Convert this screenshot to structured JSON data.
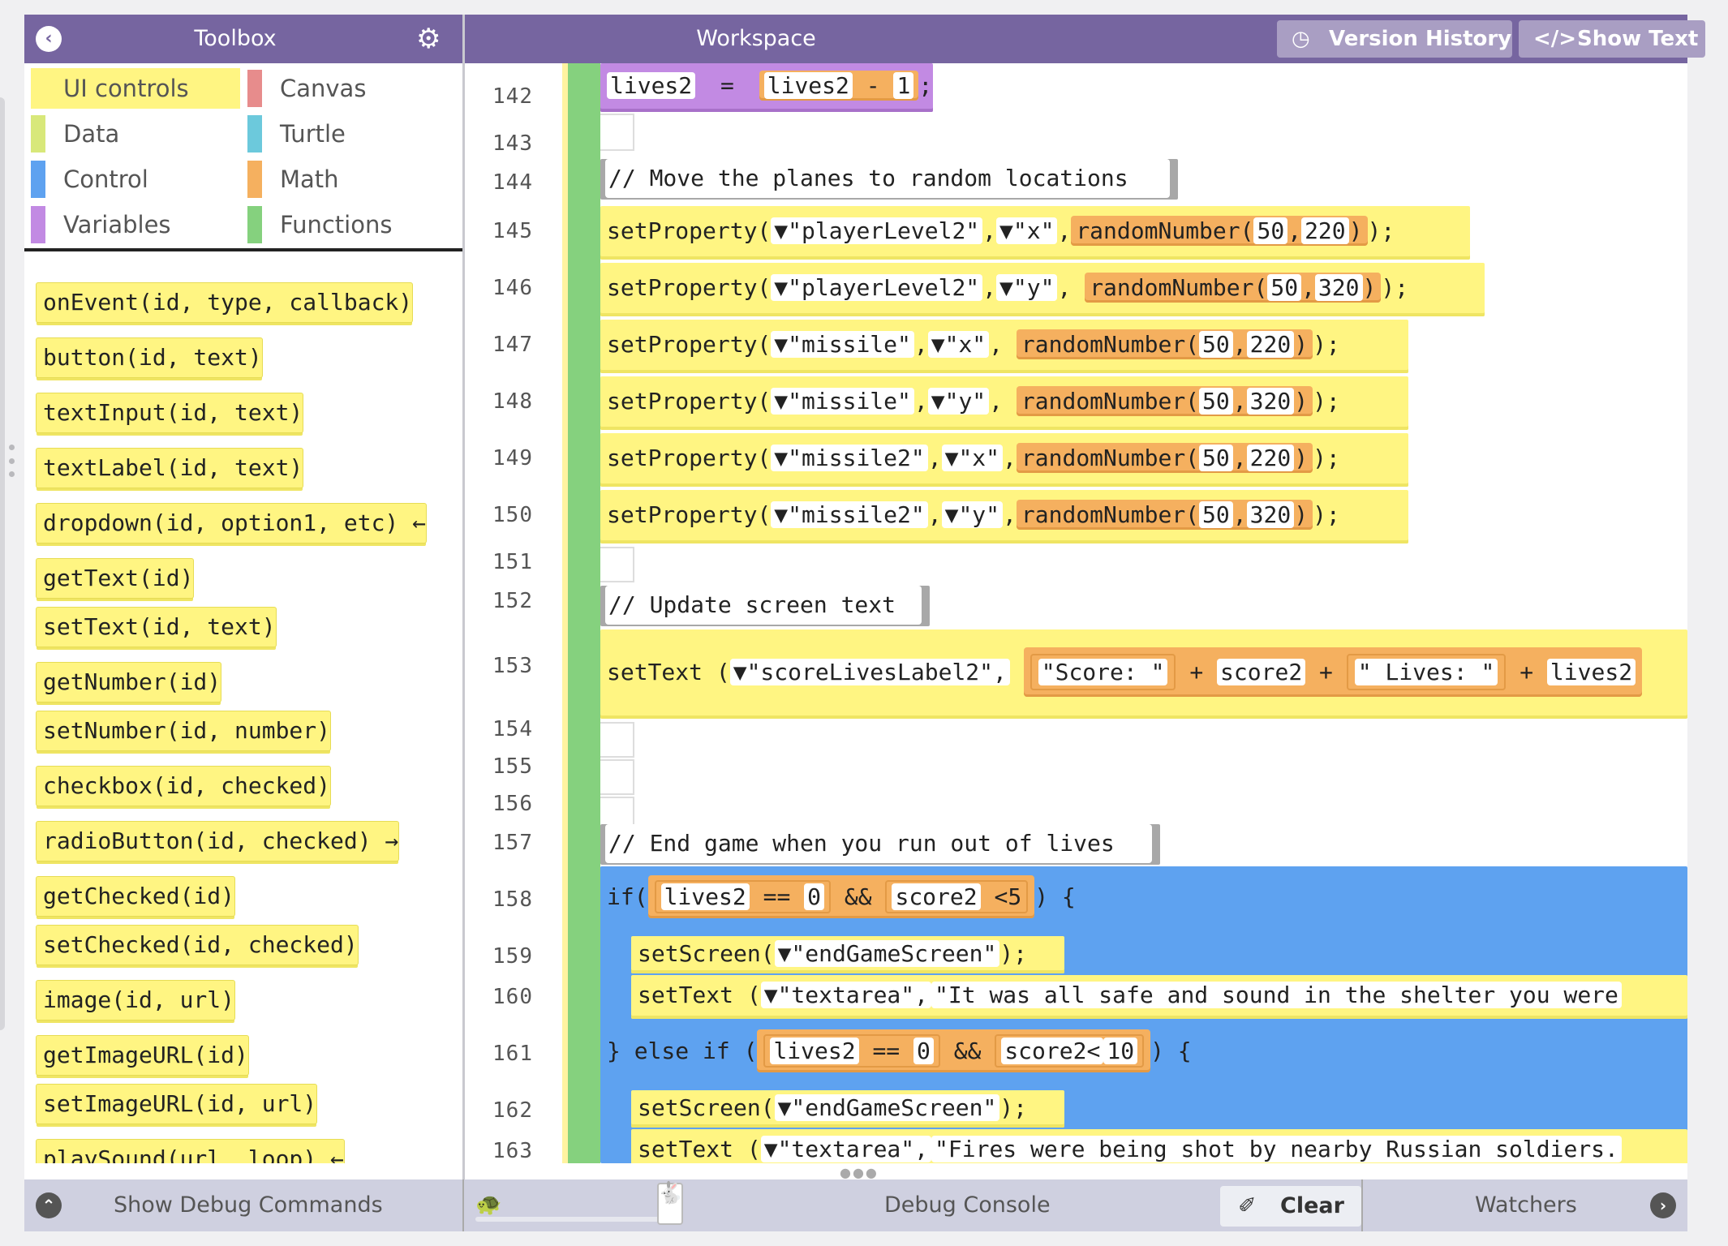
{
  "toolbox": {
    "title": "Toolbox"
  },
  "workspace": {
    "title": "Workspace",
    "version_history": "Version History",
    "show_text": "Show Text"
  },
  "categories": [
    {
      "label": "UI controls",
      "color": "#fff582"
    },
    {
      "label": "Canvas",
      "color": "#e78c8c"
    },
    {
      "label": "Data",
      "color": "#d8e87a"
    },
    {
      "label": "Turtle",
      "color": "#6cc9dc"
    },
    {
      "label": "Control",
      "color": "#5ea2f0"
    },
    {
      "label": "Math",
      "color": "#f5b05f"
    },
    {
      "label": "Variables",
      "color": "#c28ae3"
    },
    {
      "label": "Functions",
      "color": "#85d17e"
    }
  ],
  "palette": [
    "onEvent(id, type, callback)",
    "button(id, text)",
    "textInput(id, text)",
    "textLabel(id, text)",
    "dropdown(id, option1, etc) ←",
    "getText(id)",
    "setText(id, text)",
    "getNumber(id)",
    "setNumber(id, number)",
    "checkbox(id, checked)",
    "radioButton(id, checked) →",
    "getChecked(id)",
    "setChecked(id, checked)",
    "image(id, url)",
    "getImageURL(id)",
    "setImageURL(id, url)",
    "playSound(url, loop) ←"
  ],
  "line_numbers": [
    "142",
    "143",
    "144",
    "145",
    "146",
    "147",
    "148",
    "149",
    "150",
    "151",
    "152",
    "153",
    "154",
    "155",
    "156",
    "157",
    "158",
    "159",
    "160",
    "161",
    "162",
    "163"
  ],
  "code": {
    "l142": {
      "lhs": "lives2",
      "op": "=",
      "rhs": "lives2",
      "minus": "-",
      "num": "1",
      "end": ";"
    },
    "l144": "// Move the planes to random locations",
    "l145": {
      "fn": "setProperty(",
      "a": "▼\"playerLevel2\"",
      "b": "▼\"x\"",
      "r": "randomNumber(",
      "n1": "50",
      "n2": "220",
      "end": ");"
    },
    "l146": {
      "fn": "setProperty(",
      "a": "▼\"playerLevel2\"",
      "b": "▼\"y\"",
      "r": "randomNumber(",
      "n1": "50",
      "n2": "320",
      "end": ");"
    },
    "l147": {
      "fn": "setProperty(",
      "a": "▼\"missile\"",
      "b": "▼\"x\"",
      "r": "randomNumber(",
      "n1": "50",
      "n2": "220",
      "end": ");"
    },
    "l148": {
      "fn": "setProperty(",
      "a": "▼\"missile\"",
      "b": "▼\"y\"",
      "r": "randomNumber(",
      "n1": "50",
      "n2": "320",
      "end": ");"
    },
    "l149": {
      "fn": "setProperty(",
      "a": "▼\"missile2\"",
      "b": "▼\"x\"",
      "r": "randomNumber(",
      "n1": "50",
      "n2": "220",
      "end": ");"
    },
    "l150": {
      "fn": "setProperty(",
      "a": "▼\"missile2\"",
      "b": "▼\"y\"",
      "r": "randomNumber(",
      "n1": "50",
      "n2": "320",
      "end": ");"
    },
    "l152": "// Update screen text",
    "l153": {
      "fn": "setText (",
      "a": "▼\"scoreLivesLabel2\",",
      "s1": "\"Score: \"",
      "p1": "+",
      "v1": "score2",
      "p2": "+",
      "s2": "\" Lives: \"",
      "p3": "+",
      "v2": "lives2"
    },
    "l157": "// End game when you run out of lives",
    "l158": {
      "kw": "if(",
      "v1": "lives2",
      "op1": "==",
      "n1": "0",
      "and": "&&",
      "v2": "score2",
      "op2": "<5",
      "end": ") {"
    },
    "l159": {
      "fn": "setScreen(",
      "a": "▼\"endGameScreen\"",
      "end": ");"
    },
    "l160": {
      "fn": "setText (",
      "a": "▼\"textarea\",",
      "s": "\"It was all safe and sound in the shelter you were"
    },
    "l161": {
      "kw": "} else if (",
      "v1": "lives2",
      "op1": "==",
      "n1": "0",
      "and": "&&",
      "v2": "score2<",
      "n2": "10",
      "end": ") {"
    },
    "l162": {
      "fn": "setScreen(",
      "a": "▼\"endGameScreen\"",
      "end": ");"
    },
    "l163": {
      "fn": "setText (",
      "a": "▼\"textarea\",",
      "s": "\"Fires were being shot by nearby Russian soldiers."
    }
  },
  "bottom": {
    "debug_commands": "Show Debug Commands",
    "console": "Debug Console",
    "clear": "Clear",
    "watchers": "Watchers"
  }
}
